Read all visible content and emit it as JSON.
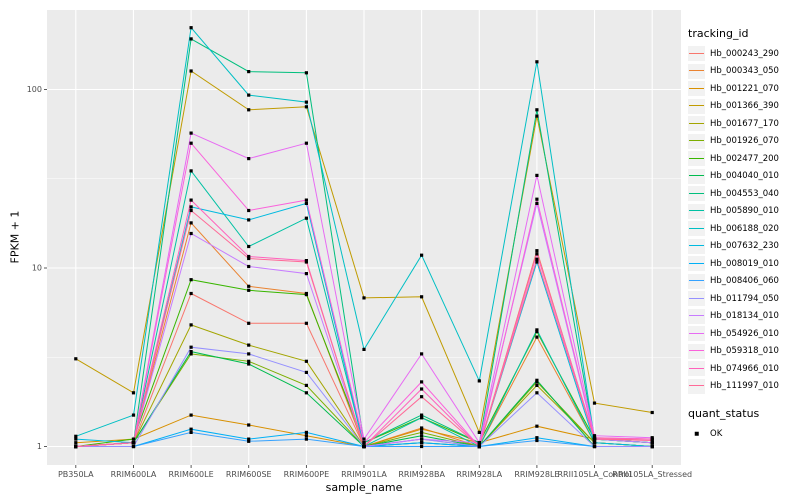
{
  "chart_data": {
    "type": "line",
    "title": "",
    "xlabel": "sample_name",
    "ylabel": "FPKM + 1",
    "y_scale": "log10",
    "ylim": [
      0.8,
      280
    ],
    "grid": "on",
    "y_ticks": [
      {
        "value": 1,
        "label": "1"
      },
      {
        "value": 10,
        "label": "10"
      },
      {
        "value": 100,
        "label": "100"
      }
    ],
    "y_minor_ticks": [
      3.1623,
      31.623
    ],
    "categories": [
      "PB350LA",
      "RRIM600LA",
      "RRIM600LE",
      "RRIM600SE",
      "RRIM600PE",
      "RRIM901LA",
      "RRIM928BA",
      "RRIM928LA",
      "RRIM928LE",
      "RRII105LA_Control",
      "RRII105LA_Stressed"
    ],
    "legend": {
      "title": "tracking_id",
      "position": "right"
    },
    "quant_legend": {
      "title": "quant_status",
      "items": [
        {
          "label": "OK",
          "marker": "black-square"
        }
      ]
    },
    "colors": {
      "panel_bg": "#EBEBEB",
      "grid_major": "#FFFFFF",
      "grid_minor": "#FFFFFF",
      "point": "#000000",
      "tick_label": "#4D4D4D",
      "tick_mark": "#333333",
      "legend_key_bg": "#F2F2F2"
    },
    "series": [
      {
        "name": "Hb_000243_290",
        "color": "#F8766D",
        "values": [
          1.0,
          1.05,
          7.2,
          4.9,
          4.9,
          1.0,
          1.1,
          1.0,
          12.5,
          1.1,
          1.1
        ]
      },
      {
        "name": "Hb_000343_050",
        "color": "#EA8331",
        "values": [
          1.0,
          1.05,
          17.9,
          7.9,
          7.2,
          1.0,
          1.27,
          1.0,
          4.1,
          1.05,
          1.0
        ]
      },
      {
        "name": "Hb_001221_070",
        "color": "#D89000",
        "values": [
          1.05,
          1.1,
          1.5,
          1.32,
          1.15,
          1.0,
          1.25,
          1.05,
          1.3,
          1.1,
          1.05
        ]
      },
      {
        "name": "Hb_001366_390",
        "color": "#C09B00",
        "values": [
          3.1,
          2.0,
          127,
          77,
          80,
          6.8,
          6.9,
          1.2,
          71,
          1.75,
          1.55
        ]
      },
      {
        "name": "Hb_001677_170",
        "color": "#A3A500",
        "values": [
          1.0,
          1.05,
          4.8,
          3.7,
          3.0,
          1.0,
          1.05,
          1.0,
          2.2,
          1.05,
          1.0
        ]
      },
      {
        "name": "Hb_001926_070",
        "color": "#7CAE00",
        "values": [
          1.0,
          1.05,
          3.3,
          3.0,
          2.2,
          1.0,
          1.2,
          1.0,
          2.3,
          1.05,
          1.0
        ]
      },
      {
        "name": "Hb_002477_200",
        "color": "#39B600",
        "values": [
          1.0,
          1.1,
          8.6,
          7.5,
          7.1,
          1.05,
          1.45,
          1.05,
          4.4,
          1.1,
          1.05
        ]
      },
      {
        "name": "Hb_004040_010",
        "color": "#00BB4E",
        "values": [
          1.0,
          1.05,
          3.4,
          2.9,
          2.0,
          1.0,
          1.15,
          1.0,
          2.35,
          1.0,
          1.0
        ]
      },
      {
        "name": "Hb_004553_040",
        "color": "#00BF7D",
        "values": [
          1.0,
          1.05,
          192,
          126,
          124,
          1.05,
          1.5,
          1.05,
          77,
          1.1,
          1.05
        ]
      },
      {
        "name": "Hb_005890_010",
        "color": "#00C1A3",
        "values": [
          1.0,
          1.05,
          35,
          13.2,
          19,
          1.0,
          1.45,
          1.0,
          4.5,
          1.05,
          1.0
        ]
      },
      {
        "name": "Hb_006188_020",
        "color": "#00BFC4",
        "values": [
          1.14,
          1.5,
          222,
          93,
          85,
          3.5,
          11.8,
          2.33,
          143,
          1.1,
          1.05
        ]
      },
      {
        "name": "Hb_007632_230",
        "color": "#00BAE0",
        "values": [
          1.1,
          1.05,
          22,
          18.6,
          23,
          1.0,
          1.05,
          1.0,
          10.8,
          1.05,
          1.0
        ]
      },
      {
        "name": "Hb_008019_010",
        "color": "#00B0F6",
        "values": [
          1.0,
          1.0,
          1.25,
          1.1,
          1.2,
          1.0,
          1.05,
          1.0,
          1.12,
          1.0,
          1.0
        ]
      },
      {
        "name": "Hb_008406_060",
        "color": "#35A2FF",
        "values": [
          1.0,
          1.0,
          1.2,
          1.07,
          1.1,
          1.0,
          1.0,
          1.0,
          1.08,
          1.0,
          1.0
        ]
      },
      {
        "name": "Hb_011794_050",
        "color": "#9590FF",
        "values": [
          1.0,
          1.0,
          3.6,
          3.3,
          2.6,
          1.0,
          1.1,
          1.0,
          2.0,
          1.0,
          1.0
        ]
      },
      {
        "name": "Hb_018134_010",
        "color": "#C77CFF",
        "values": [
          1.0,
          1.05,
          15.6,
          10.2,
          9.3,
          1.0,
          1.1,
          1.05,
          23.0,
          1.1,
          1.05
        ]
      },
      {
        "name": "Hb_054926_010",
        "color": "#E76BF3",
        "values": [
          1.0,
          1.05,
          57,
          41,
          50,
          1.1,
          3.3,
          1.05,
          33,
          1.15,
          1.12
        ]
      },
      {
        "name": "Hb_059318_010",
        "color": "#FA62DB",
        "values": [
          1.0,
          1.05,
          50,
          21,
          24,
          1.05,
          2.3,
          1.0,
          24.3,
          1.12,
          1.1
        ]
      },
      {
        "name": "Hb_074966_010",
        "color": "#FF62BC",
        "values": [
          1.0,
          1.05,
          24,
          11.6,
          11,
          1.0,
          2.1,
          1.0,
          12.0,
          1.12,
          1.1
        ]
      },
      {
        "name": "Hb_111997_010",
        "color": "#FF6A98",
        "values": [
          1.0,
          1.05,
          21,
          11.3,
          10.8,
          1.0,
          1.9,
          1.0,
          11.2,
          1.1,
          1.08
        ]
      }
    ]
  }
}
